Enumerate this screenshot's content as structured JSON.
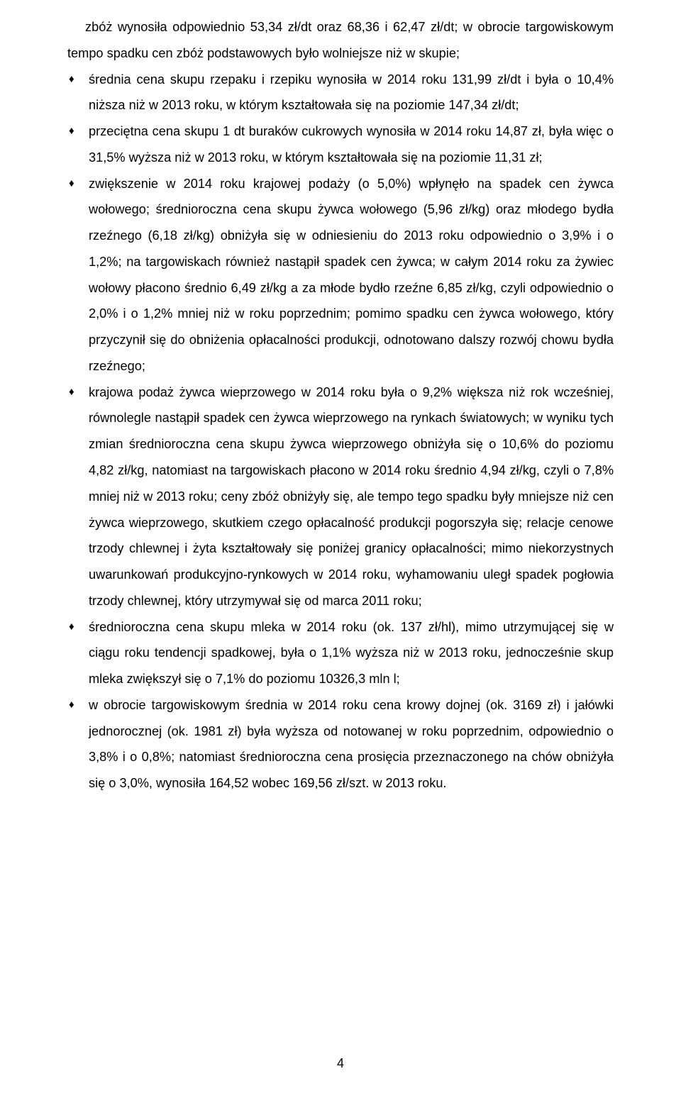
{
  "lead_text": "zbóż wynosiła odpowiednio 53,34 zł/dt oraz 68,36 i 62,47 zł/dt; w obrocie targowiskowym tempo spadku cen zbóż podstawowych było wolniejsze niż w skupie;",
  "bullets": [
    "średnia cena skupu rzepaku i rzepiku wynosiła w 2014 roku 131,99 zł/dt i była o 10,4% niższa niż w 2013 roku, w którym kształtowała się na poziomie 147,34 zł/dt;",
    "przeciętna cena skupu 1 dt buraków cukrowych wynosiła w 2014 roku 14,87 zł, była więc o 31,5% wyższa niż w 2013 roku, w którym kształtowała się na poziomie 11,31 zł;",
    "zwiększenie w 2014 roku krajowej podaży (o 5,0%) wpłynęło na spadek cen żywca wołowego; średnioroczna cena skupu żywca wołowego (5,96 zł/kg) oraz młodego bydła rzeźnego (6,18 zł/kg) obniżyła się w odniesieniu do 2013 roku odpowiednio o 3,9% i o 1,2%; na targowiskach również nastąpił spadek cen żywca; w całym 2014 roku za żywiec wołowy płacono średnio 6,49 zł/kg a za młode bydło rzeźne 6,85 zł/kg, czyli odpowiednio o 2,0% i o 1,2% mniej niż w roku poprzednim; pomimo spadku cen żywca wołowego, który przyczynił się do obniżenia opłacalności produkcji, odnotowano dalszy rozwój chowu bydła rzeźnego;",
    "krajowa podaż żywca wieprzowego w 2014 roku była o 9,2% większa niż rok wcześniej, równolegle nastąpił spadek cen żywca wieprzowego na rynkach światowych; w wyniku tych zmian średnioroczna cena skupu żywca wieprzowego obniżyła się o 10,6% do poziomu 4,82 zł/kg, natomiast na targowiskach płacono w 2014 roku średnio 4,94 zł/kg, czyli o 7,8% mniej niż w 2013 roku; ceny zbóż obniżyły się, ale tempo tego spadku były mniejsze niż cen żywca wieprzowego, skutkiem czego opłacalność produkcji pogorszyła się; relacje cenowe trzody chlewnej i żyta kształtowały się poniżej granicy opłacalności; mimo niekorzystnych uwarunkowań produkcyjno-rynkowych w 2014 roku, wyhamowaniu uległ spadek pogłowia trzody chlewnej, który utrzymywał się od marca 2011 roku;",
    "średnioroczna cena skupu mleka w 2014 roku (ok. 137 zł/hl), mimo utrzymującej się w ciągu roku tendencji spadkowej, była o 1,1% wyższa niż w 2013 roku, jednocześnie skup mleka zwiększył się o 7,1% do poziomu 10326,3 mln l;",
    "w obrocie targowiskowym średnia w 2014 roku cena krowy dojnej (ok. 3169 zł) i jałówki jednorocznej (ok. 1981 zł) była wyższa od notowanej w roku poprzednim, odpowiednio o 3,8% i o 0,8%; natomiast średnioroczna cena prosięcia przeznaczonego na chów obniżyła się o 3,0%, wynosiła 164,52 wobec 169,56 zł/szt. w 2013 roku."
  ],
  "page_number": "4"
}
